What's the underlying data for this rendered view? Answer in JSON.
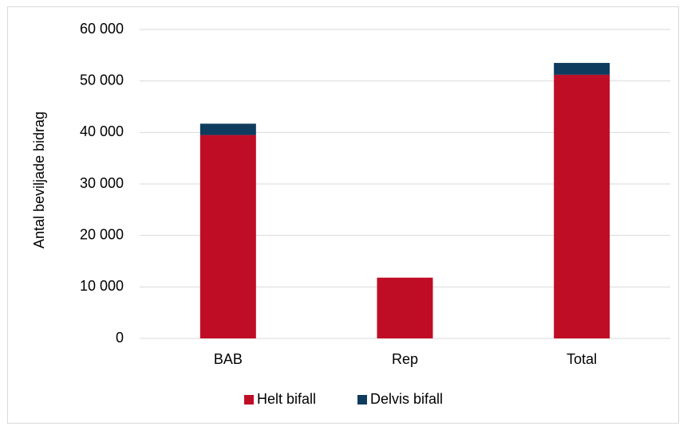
{
  "chart_data": {
    "type": "bar",
    "stacked": true,
    "categories": [
      "BAB",
      "Rep",
      "Total"
    ],
    "series": [
      {
        "name": "Helt bifall",
        "values": [
          39500,
          11800,
          51200
        ],
        "color": "#c00d26"
      },
      {
        "name": "Delvis bifall",
        "values": [
          2200,
          0,
          2300
        ],
        "color": "#0f3c5e"
      }
    ],
    "ylabel": "Antal beviljade bidrag",
    "xlabel": "",
    "title": "",
    "ylim": [
      0,
      60000
    ],
    "y_ticks": [
      0,
      10000,
      20000,
      30000,
      40000,
      50000,
      60000
    ],
    "y_tick_labels": [
      "0",
      "10 000",
      "20 000",
      "30 000",
      "40 000",
      "50 000",
      "60 000"
    ],
    "grid": true,
    "legend_position": "bottom"
  }
}
